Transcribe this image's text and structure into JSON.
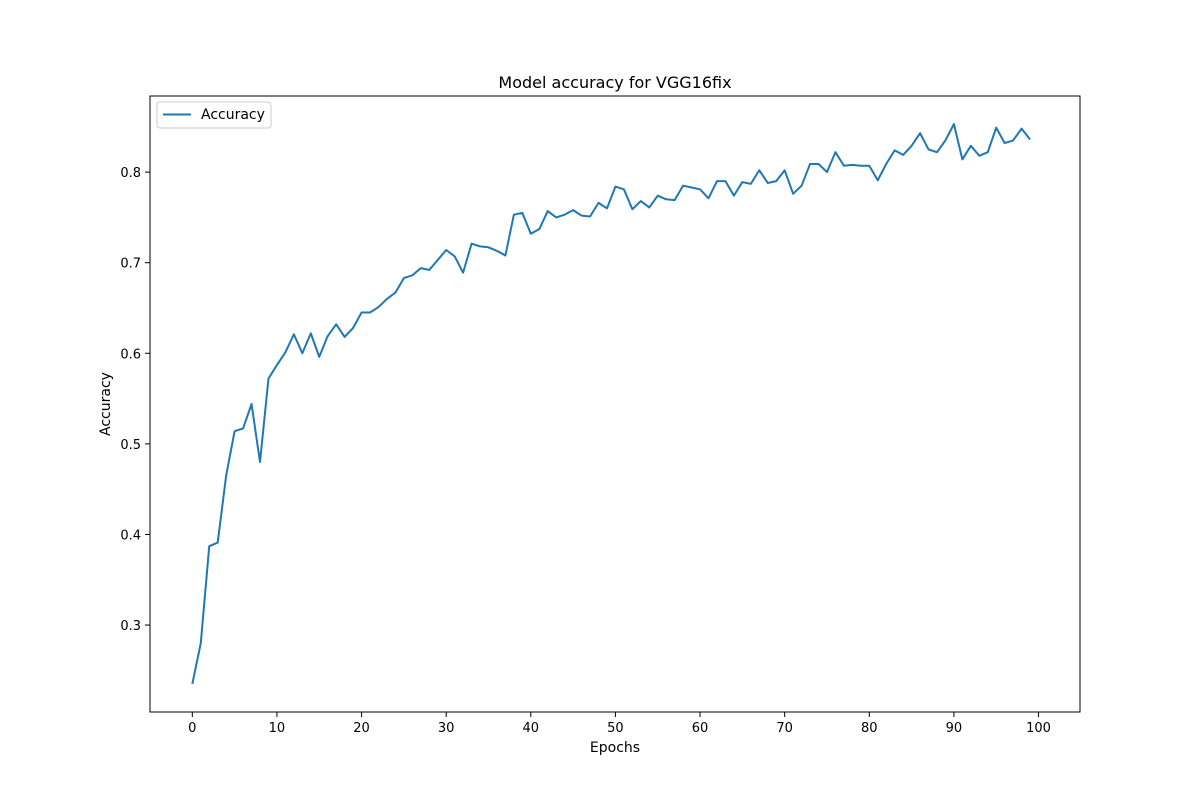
{
  "chart_data": {
    "type": "line",
    "title": "Model accuracy for VGG16fix",
    "xlabel": "Epochs",
    "ylabel": "Accuracy",
    "xlim": [
      -5,
      104.9
    ],
    "ylim": [
      0.204,
      0.884
    ],
    "xticks": [
      0,
      10,
      20,
      30,
      40,
      50,
      60,
      70,
      80,
      90,
      100
    ],
    "yticks": [
      0.3,
      0.4,
      0.5,
      0.6,
      0.7,
      0.8
    ],
    "legend": {
      "position": "upper-left",
      "entries": [
        "Accuracy"
      ]
    },
    "grid": false,
    "colors": {
      "series": "#1f77b4",
      "axes": "#000000",
      "legend_border": "#cccccc"
    },
    "series": [
      {
        "name": "Accuracy",
        "x": [
          0,
          1,
          2,
          3,
          4,
          5,
          6,
          7,
          8,
          9,
          10,
          11,
          12,
          13,
          14,
          15,
          16,
          17,
          18,
          19,
          20,
          21,
          22,
          23,
          24,
          25,
          26,
          27,
          28,
          29,
          30,
          31,
          32,
          33,
          34,
          35,
          36,
          37,
          38,
          39,
          40,
          41,
          42,
          43,
          44,
          45,
          46,
          47,
          48,
          49,
          50,
          51,
          52,
          53,
          54,
          55,
          56,
          57,
          58,
          59,
          60,
          61,
          62,
          63,
          64,
          65,
          66,
          67,
          68,
          69,
          70,
          71,
          72,
          73,
          74,
          75,
          76,
          77,
          78,
          79,
          80,
          81,
          82,
          83,
          84,
          85,
          86,
          87,
          88,
          89,
          90,
          91,
          92,
          93,
          94,
          95,
          96,
          97,
          98,
          99
        ],
        "values": [
          0.235,
          0.28,
          0.387,
          0.391,
          0.465,
          0.514,
          0.517,
          0.544,
          0.48,
          0.572,
          0.587,
          0.601,
          0.621,
          0.6,
          0.622,
          0.596,
          0.619,
          0.632,
          0.618,
          0.628,
          0.645,
          0.645,
          0.651,
          0.66,
          0.667,
          0.683,
          0.686,
          0.694,
          0.692,
          0.703,
          0.714,
          0.707,
          0.689,
          0.721,
          0.718,
          0.717,
          0.713,
          0.708,
          0.753,
          0.755,
          0.732,
          0.737,
          0.757,
          0.75,
          0.753,
          0.758,
          0.752,
          0.751,
          0.766,
          0.76,
          0.784,
          0.781,
          0.759,
          0.768,
          0.761,
          0.774,
          0.77,
          0.769,
          0.785,
          0.783,
          0.781,
          0.771,
          0.79,
          0.79,
          0.774,
          0.789,
          0.787,
          0.802,
          0.788,
          0.79,
          0.802,
          0.776,
          0.785,
          0.809,
          0.809,
          0.8,
          0.822,
          0.807,
          0.808,
          0.807,
          0.807,
          0.791,
          0.809,
          0.824,
          0.819,
          0.829,
          0.843,
          0.825,
          0.822,
          0.835,
          0.853,
          0.814,
          0.829,
          0.818,
          0.822,
          0.849,
          0.832,
          0.835,
          0.848,
          0.836
        ]
      }
    ]
  }
}
